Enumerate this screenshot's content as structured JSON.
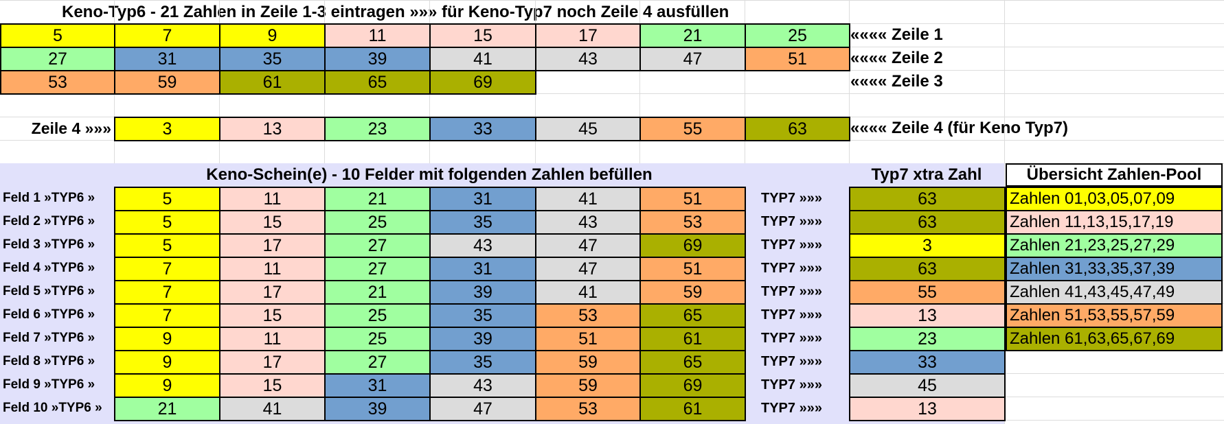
{
  "colors": {
    "yellow": "#ffff00",
    "pink": "#ffd7cf",
    "green": "#a0ffa0",
    "blue": "#729fcf",
    "gray": "#dcdcdc",
    "orange": "#ffaa66",
    "olive": "#aab000",
    "lavender": "#e1e1fb"
  },
  "title": "Keno-Typ6 - 21 Zahlen in Zeile 1-3 eintragen »»» für Keno-Typ7 noch Zeile 4 ausfüllen",
  "rows": [
    {
      "label": "«««« Zeile 1",
      "cells": [
        {
          "v": "5",
          "c": "yellow"
        },
        {
          "v": "7",
          "c": "yellow"
        },
        {
          "v": "9",
          "c": "yellow"
        },
        {
          "v": "11",
          "c": "pink"
        },
        {
          "v": "15",
          "c": "pink"
        },
        {
          "v": "17",
          "c": "pink"
        },
        {
          "v": "21",
          "c": "green"
        },
        {
          "v": "25",
          "c": "green"
        }
      ]
    },
    {
      "label": "«««« Zeile 2",
      "cells": [
        {
          "v": "27",
          "c": "green"
        },
        {
          "v": "31",
          "c": "blue"
        },
        {
          "v": "35",
          "c": "blue"
        },
        {
          "v": "39",
          "c": "blue"
        },
        {
          "v": "41",
          "c": "gray"
        },
        {
          "v": "43",
          "c": "gray"
        },
        {
          "v": "47",
          "c": "gray"
        },
        {
          "v": "51",
          "c": "orange"
        }
      ]
    },
    {
      "label": "«««« Zeile 3",
      "cells": [
        {
          "v": "53",
          "c": "orange"
        },
        {
          "v": "59",
          "c": "orange"
        },
        {
          "v": "61",
          "c": "olive"
        },
        {
          "v": "65",
          "c": "olive"
        },
        {
          "v": "69",
          "c": "olive"
        }
      ]
    }
  ],
  "row4": {
    "left_label": "Zeile 4 »»»",
    "right_label": "«««« Zeile 4 (für Keno Typ7)",
    "cells": [
      {
        "v": "3",
        "c": "yellow"
      },
      {
        "v": "13",
        "c": "pink"
      },
      {
        "v": "23",
        "c": "green"
      },
      {
        "v": "33",
        "c": "blue"
      },
      {
        "v": "45",
        "c": "gray"
      },
      {
        "v": "55",
        "c": "orange"
      },
      {
        "v": "63",
        "c": "olive"
      }
    ]
  },
  "schein": {
    "title": "Keno-Schein(e) - 10 Felder mit folgenden Zahlen befüllen",
    "extra_title": "Typ7 xtra Zahl",
    "typ7_label": "TYP7 »»»",
    "fields": [
      {
        "label": "Feld 1 »TYP6 »",
        "cells": [
          {
            "v": "5",
            "c": "yellow"
          },
          {
            "v": "11",
            "c": "pink"
          },
          {
            "v": "21",
            "c": "green"
          },
          {
            "v": "31",
            "c": "blue"
          },
          {
            "v": "41",
            "c": "gray"
          },
          {
            "v": "51",
            "c": "orange"
          }
        ],
        "extra": {
          "v": "63",
          "c": "olive"
        }
      },
      {
        "label": "Feld 2 »TYP6 »",
        "cells": [
          {
            "v": "5",
            "c": "yellow"
          },
          {
            "v": "15",
            "c": "pink"
          },
          {
            "v": "25",
            "c": "green"
          },
          {
            "v": "35",
            "c": "blue"
          },
          {
            "v": "43",
            "c": "gray"
          },
          {
            "v": "53",
            "c": "orange"
          }
        ],
        "extra": {
          "v": "63",
          "c": "olive"
        }
      },
      {
        "label": "Feld 3 »TYP6 »",
        "cells": [
          {
            "v": "5",
            "c": "yellow"
          },
          {
            "v": "17",
            "c": "pink"
          },
          {
            "v": "27",
            "c": "green"
          },
          {
            "v": "43",
            "c": "gray"
          },
          {
            "v": "47",
            "c": "gray"
          },
          {
            "v": "69",
            "c": "olive"
          }
        ],
        "extra": {
          "v": "3",
          "c": "yellow"
        }
      },
      {
        "label": "Feld 4 »TYP6 »",
        "cells": [
          {
            "v": "7",
            "c": "yellow"
          },
          {
            "v": "11",
            "c": "pink"
          },
          {
            "v": "27",
            "c": "green"
          },
          {
            "v": "31",
            "c": "blue"
          },
          {
            "v": "47",
            "c": "gray"
          },
          {
            "v": "51",
            "c": "orange"
          }
        ],
        "extra": {
          "v": "63",
          "c": "olive"
        }
      },
      {
        "label": "Feld 5 »TYP6 »",
        "cells": [
          {
            "v": "7",
            "c": "yellow"
          },
          {
            "v": "17",
            "c": "pink"
          },
          {
            "v": "21",
            "c": "green"
          },
          {
            "v": "39",
            "c": "blue"
          },
          {
            "v": "41",
            "c": "gray"
          },
          {
            "v": "59",
            "c": "orange"
          }
        ],
        "extra": {
          "v": "55",
          "c": "orange"
        }
      },
      {
        "label": "Feld 6 »TYP6 »",
        "cells": [
          {
            "v": "7",
            "c": "yellow"
          },
          {
            "v": "15",
            "c": "pink"
          },
          {
            "v": "25",
            "c": "green"
          },
          {
            "v": "35",
            "c": "blue"
          },
          {
            "v": "53",
            "c": "orange"
          },
          {
            "v": "65",
            "c": "olive"
          }
        ],
        "extra": {
          "v": "13",
          "c": "pink"
        }
      },
      {
        "label": "Feld 7 »TYP6 »",
        "cells": [
          {
            "v": "9",
            "c": "yellow"
          },
          {
            "v": "11",
            "c": "pink"
          },
          {
            "v": "25",
            "c": "green"
          },
          {
            "v": "39",
            "c": "blue"
          },
          {
            "v": "51",
            "c": "orange"
          },
          {
            "v": "61",
            "c": "olive"
          }
        ],
        "extra": {
          "v": "23",
          "c": "green"
        }
      },
      {
        "label": "Feld 8 »TYP6 »",
        "cells": [
          {
            "v": "9",
            "c": "yellow"
          },
          {
            "v": "17",
            "c": "pink"
          },
          {
            "v": "27",
            "c": "green"
          },
          {
            "v": "35",
            "c": "blue"
          },
          {
            "v": "59",
            "c": "orange"
          },
          {
            "v": "65",
            "c": "olive"
          }
        ],
        "extra": {
          "v": "33",
          "c": "blue"
        }
      },
      {
        "label": "Feld 9 »TYP6 »",
        "cells": [
          {
            "v": "9",
            "c": "yellow"
          },
          {
            "v": "15",
            "c": "pink"
          },
          {
            "v": "31",
            "c": "blue"
          },
          {
            "v": "43",
            "c": "gray"
          },
          {
            "v": "59",
            "c": "orange"
          },
          {
            "v": "69",
            "c": "olive"
          }
        ],
        "extra": {
          "v": "45",
          "c": "gray"
        }
      },
      {
        "label": "Feld 10 »TYP6 »",
        "cells": [
          {
            "v": "21",
            "c": "green"
          },
          {
            "v": "41",
            "c": "gray"
          },
          {
            "v": "39",
            "c": "blue"
          },
          {
            "v": "47",
            "c": "gray"
          },
          {
            "v": "53",
            "c": "orange"
          },
          {
            "v": "61",
            "c": "olive"
          }
        ],
        "extra": {
          "v": "13",
          "c": "pink"
        }
      }
    ]
  },
  "pool": {
    "title": "Übersicht Zahlen-Pool",
    "items": [
      {
        "text": "Zahlen 01,03,05,07,09",
        "c": "yellow"
      },
      {
        "text": "Zahlen 11,13,15,17,19",
        "c": "pink"
      },
      {
        "text": "Zahlen 21,23,25,27,29",
        "c": "green"
      },
      {
        "text": "Zahlen 31,33,35,37,39",
        "c": "blue"
      },
      {
        "text": "Zahlen 41,43,45,47,49",
        "c": "gray"
      },
      {
        "text": "Zahlen 51,53,55,57,59",
        "c": "orange"
      },
      {
        "text": "Zahlen 61,63,65,67,69",
        "c": "olive"
      }
    ]
  }
}
